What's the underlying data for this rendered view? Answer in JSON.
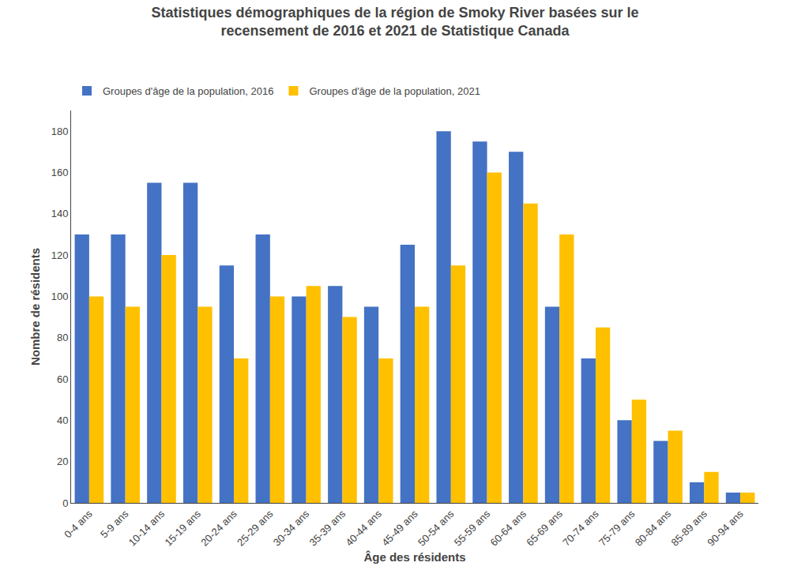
{
  "chart_data": {
    "type": "bar",
    "title": "Statistiques démographiques de la région de Smoky River basées sur le\nrecensement de 2016 et 2021 de Statistique Canada",
    "xlabel": "Âge des résidents",
    "ylabel": "Nombre de résidents",
    "categories": [
      "0-4 ans",
      "5-9 ans",
      "10-14 ans",
      "15-19 ans",
      "20-24 ans",
      "25-29 ans",
      "30-34 ans",
      "35-39 ans",
      "40-44 ans",
      "45-49 ans",
      "50-54 ans",
      "55-59 ans",
      "60-64 ans",
      "65-69 ans",
      "70-74 ans",
      "75-79 ans",
      "80-84 ans",
      "85-89 ans",
      "90-94 ans"
    ],
    "series": [
      {
        "name": "Groupes d'âge de la population, 2016",
        "color": "#4472C4",
        "values": [
          130,
          130,
          155,
          155,
          115,
          130,
          100,
          105,
          95,
          125,
          180,
          175,
          170,
          95,
          70,
          40,
          30,
          10,
          5
        ]
      },
      {
        "name": "Groupes d'âge de la population, 2021",
        "color": "#FFC000",
        "values": [
          100,
          95,
          120,
          95,
          70,
          100,
          105,
          90,
          70,
          95,
          115,
          160,
          145,
          130,
          85,
          50,
          35,
          15,
          5
        ]
      }
    ],
    "ylim": [
      0,
      190
    ],
    "yticks": [
      0,
      20,
      40,
      60,
      80,
      100,
      120,
      140,
      160,
      180
    ],
    "grid": false,
    "legend": "top left"
  }
}
